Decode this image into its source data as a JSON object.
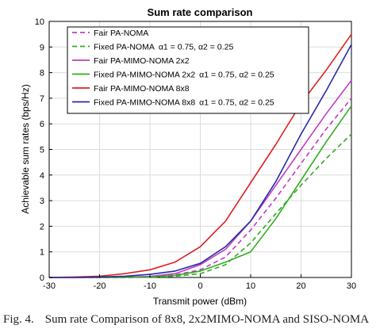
{
  "chart_data": {
    "type": "line",
    "title": "Sum rate comparison",
    "xlabel": "Transmit power (dBm)",
    "ylabel": "Achievable sum rates (bps/Hz)",
    "xlim": [
      -30,
      30
    ],
    "ylim": [
      0,
      10
    ],
    "xticks": [
      "-30",
      "-20",
      "-10",
      "0",
      "10",
      "20",
      "30"
    ],
    "yticks": [
      "0",
      "1",
      "2",
      "3",
      "4",
      "5",
      "6",
      "7",
      "8",
      "9",
      "10"
    ],
    "grid": true,
    "legend_position": "top-left",
    "x": [
      -30,
      -25,
      -20,
      -15,
      -10,
      -5,
      0,
      5,
      10,
      15,
      20,
      25,
      30
    ],
    "series": [
      {
        "name": "Fair PA-NOMA",
        "color": "#c03cc0",
        "dash": "dashed",
        "values": [
          0.0,
          0.0,
          0.0,
          0.01,
          0.03,
          0.1,
          0.3,
          0.8,
          1.85,
          3.1,
          4.45,
          5.8,
          7.0
        ]
      },
      {
        "name": "Fixed PA-NOMA",
        "legend_extra": "α1 = 0.75, α2 = 0.25",
        "color": "#33aa22",
        "dash": "dashed",
        "values": [
          0.0,
          0.0,
          0.0,
          0.0,
          0.01,
          0.05,
          0.15,
          0.5,
          1.35,
          2.5,
          3.6,
          4.65,
          5.6
        ]
      },
      {
        "name": "Fair PA-MIMO-NOMA 2x2",
        "color": "#c03cc0",
        "dash": "solid",
        "values": [
          0.0,
          0.0,
          0.0,
          0.01,
          0.04,
          0.15,
          0.5,
          1.1,
          2.2,
          3.6,
          5.0,
          6.4,
          7.7
        ]
      },
      {
        "name": "Fixed PA-MIMO-NOMA 2x2",
        "legend_extra": "α1 = 0.75, α2 = 0.25",
        "color": "#33aa22",
        "dash": "solid",
        "values": [
          0.0,
          0.0,
          0.0,
          0.0,
          0.02,
          0.08,
          0.25,
          0.6,
          1.0,
          2.3,
          3.8,
          5.3,
          6.7
        ]
      },
      {
        "name": "Fair PA-MIMO-NOMA 8x8",
        "color": "#e02020",
        "dash": "solid",
        "values": [
          0.0,
          0.02,
          0.05,
          0.15,
          0.3,
          0.6,
          1.2,
          2.2,
          3.7,
          5.2,
          6.8,
          8.1,
          9.5
        ]
      },
      {
        "name": "Fixed PA-MIMO-NOMA 8x8",
        "legend_extra": "α1 = 0.75, α2 = 0.25",
        "color": "#2a2aa8",
        "dash": "solid",
        "values": [
          0.0,
          0.0,
          0.02,
          0.05,
          0.12,
          0.25,
          0.55,
          1.2,
          2.2,
          3.75,
          5.6,
          7.3,
          9.1
        ]
      }
    ]
  },
  "caption": {
    "figure": "Fig. 4.",
    "text": "Sum rate Comparison of 8x8, 2x2MIMO-NOMA and SISO-NOMA"
  }
}
